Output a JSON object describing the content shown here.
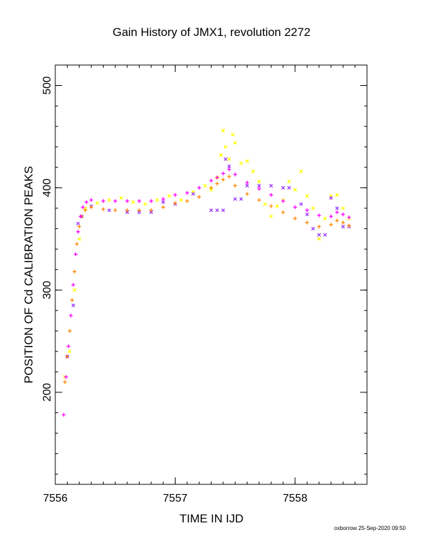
{
  "chart_data": {
    "type": "scatter",
    "title": "Gain History of JMX1, revolution 2272",
    "xlabel": "TIME IN IJD",
    "ylabel": "POSITION OF Cd CALIBRATION PEAKS",
    "xlim": [
      7556.0,
      7558.6
    ],
    "ylim": [
      110,
      520
    ],
    "xticks": [
      7556,
      7557,
      7558
    ],
    "xtick_labels": [
      "7556",
      "7557",
      "7558"
    ],
    "yticks": [
      200,
      300,
      400,
      500
    ],
    "ytick_labels": [
      "200",
      "300",
      "400",
      "500"
    ],
    "grid": false,
    "legend": "none",
    "footer": "oxborrow 25-Sep-2020 09:50",
    "series": [
      {
        "marker": "x",
        "color": "#ffff00",
        "x": [
          7556.08,
          7556.12,
          7556.16,
          7556.2,
          7556.25,
          7556.35,
          7556.45,
          7556.55,
          7556.65,
          7556.75,
          7556.85,
          7556.95,
          7557.05,
          7557.15,
          7557.25,
          7557.3,
          7557.35,
          7557.38,
          7557.4,
          7557.42,
          7557.45,
          7557.48,
          7557.5,
          7557.55,
          7557.6,
          7557.65,
          7557.7,
          7557.75,
          7557.8,
          7557.85,
          7557.9,
          7557.95,
          7558.0,
          7558.05,
          7558.1,
          7558.15,
          7558.2,
          7558.25,
          7558.3,
          7558.35,
          7558.4,
          7558.45
        ],
        "y": [
          215,
          240,
          300,
          350,
          380,
          385,
          388,
          390,
          386,
          384,
          388,
          392,
          388,
          396,
          402,
          398,
          410,
          432,
          456,
          440,
          428,
          452,
          444,
          424,
          426,
          416,
          406,
          384,
          372,
          382,
          388,
          406,
          398,
          416,
          392,
          380,
          350,
          370,
          392,
          393,
          380,
          370
        ]
      },
      {
        "marker": "x",
        "color": "#9933ff",
        "x": [
          7556.1,
          7556.15,
          7556.19,
          7556.22,
          7556.3,
          7556.45,
          7556.6,
          7556.7,
          7556.8,
          7556.9,
          7557.0,
          7557.15,
          7557.3,
          7557.35,
          7557.4,
          7557.42,
          7557.45,
          7557.5,
          7557.55,
          7557.6,
          7557.7,
          7557.8,
          7557.9,
          7557.95,
          7558.05,
          7558.1,
          7558.15,
          7558.2,
          7558.25,
          7558.3,
          7558.35,
          7558.4,
          7558.45
        ],
        "y": [
          235,
          285,
          365,
          372,
          382,
          378,
          376,
          376,
          376,
          386,
          384,
          394,
          378,
          378,
          378,
          428,
          421,
          389,
          389,
          402,
          402,
          402,
          400,
          400,
          384,
          374,
          360,
          354,
          354,
          390,
          380,
          362,
          362
        ]
      },
      {
        "marker": "+",
        "color": "#ff8800",
        "x": [
          7556.08,
          7556.1,
          7556.12,
          7556.14,
          7556.16,
          7556.18,
          7556.2,
          7556.22,
          7556.25,
          7556.3,
          7556.4,
          7556.5,
          7556.6,
          7556.7,
          7556.8,
          7556.9,
          7557.0,
          7557.1,
          7557.2,
          7557.3,
          7557.35,
          7557.4,
          7557.45,
          7557.5,
          7557.6,
          7557.7,
          7557.8,
          7557.9,
          7558.0,
          7558.1,
          7558.2,
          7558.3,
          7558.35,
          7558.4,
          7558.45
        ],
        "y": [
          210,
          235,
          260,
          290,
          318,
          345,
          362,
          372,
          378,
          381,
          379,
          378,
          378,
          378,
          378,
          381,
          385,
          387,
          391,
          400,
          404,
          408,
          411,
          402,
          394,
          388,
          382,
          376,
          370,
          366,
          362,
          364,
          368,
          366,
          363
        ]
      },
      {
        "marker": "+",
        "color": "#ff00ff",
        "x": [
          7556.07,
          7556.09,
          7556.11,
          7556.13,
          7556.15,
          7556.17,
          7556.19,
          7556.21,
          7556.23,
          7556.26,
          7556.3,
          7556.4,
          7556.5,
          7556.6,
          7556.7,
          7556.8,
          7556.9,
          7557.0,
          7557.1,
          7557.2,
          7557.3,
          7557.35,
          7557.4,
          7557.45,
          7557.5,
          7557.6,
          7557.7,
          7557.8,
          7557.9,
          7558.0,
          7558.1,
          7558.2,
          7558.3,
          7558.35,
          7558.4,
          7558.45
        ],
        "y": [
          178,
          215,
          245,
          275,
          305,
          335,
          357,
          372,
          381,
          386,
          388,
          387,
          387,
          387,
          387,
          387,
          389,
          393,
          395,
          400,
          407,
          410,
          414,
          418,
          413,
          405,
          399,
          393,
          387,
          381,
          378,
          373,
          372,
          376,
          374,
          371
        ]
      }
    ]
  }
}
